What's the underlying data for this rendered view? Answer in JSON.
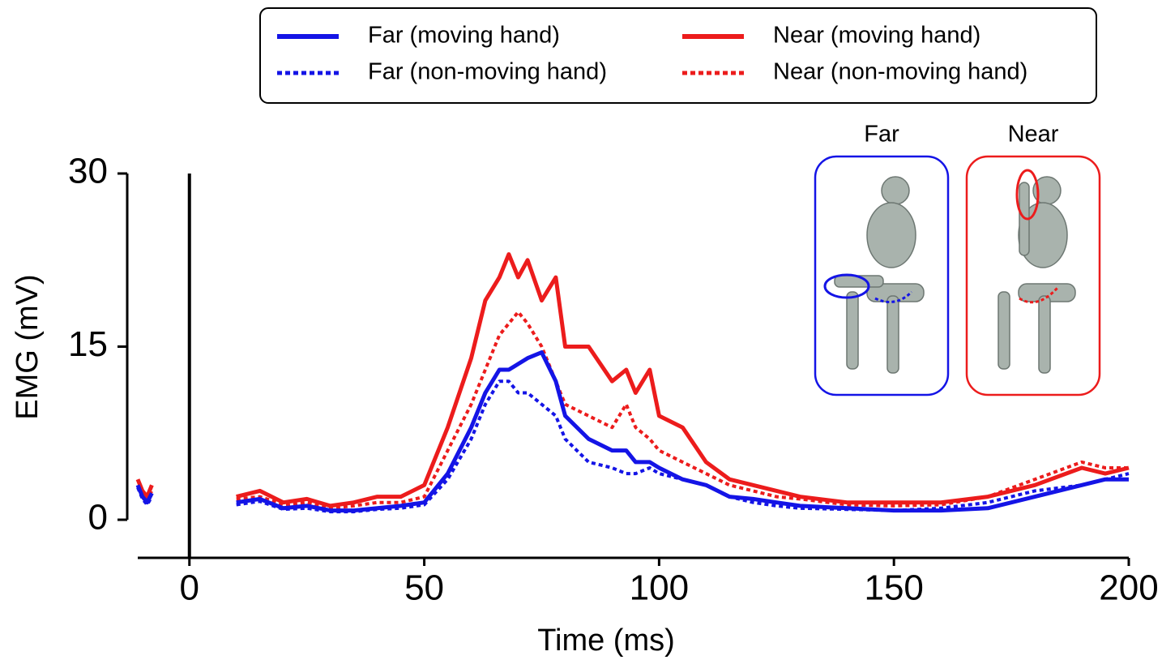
{
  "chart_data": {
    "type": "line",
    "xlabel": "Time (ms)",
    "ylabel": "EMG (mV)",
    "x": [
      -11,
      -10,
      -9,
      -8,
      0,
      10,
      15,
      20,
      25,
      30,
      35,
      40,
      45,
      50,
      55,
      60,
      63,
      66,
      68,
      70,
      72,
      75,
      78,
      80,
      85,
      90,
      93,
      95,
      98,
      100,
      105,
      110,
      115,
      120,
      125,
      130,
      140,
      150,
      160,
      170,
      180,
      190,
      195,
      200
    ],
    "series": [
      {
        "name": "Far (moving hand)",
        "color": "#1414e6",
        "dashed": false,
        "values": [
          3,
          2,
          1.5,
          2.3,
          null,
          1.5,
          1.8,
          1,
          1.2,
          0.8,
          0.8,
          1,
          1.2,
          1.5,
          4,
          8,
          11,
          13,
          13,
          13.5,
          14,
          14.5,
          12,
          9,
          7,
          6,
          6,
          5,
          5,
          4.5,
          3.5,
          3,
          2,
          1.8,
          1.5,
          1.2,
          1,
          0.8,
          0.8,
          1,
          2,
          3,
          3.5,
          3.5
        ]
      },
      {
        "name": "Near (moving hand)",
        "color": "#ec1c1c",
        "dashed": false,
        "values": [
          3.5,
          2.5,
          2,
          3,
          null,
          2,
          2.5,
          1.5,
          1.8,
          1.2,
          1.5,
          2,
          2,
          3,
          8,
          14,
          19,
          21,
          23,
          21,
          22.5,
          19,
          21,
          15,
          15,
          12,
          13,
          11,
          13,
          9,
          8,
          5,
          3.5,
          3,
          2.5,
          2,
          1.5,
          1.5,
          1.5,
          2,
          3,
          4.5,
          4,
          4.5
        ]
      },
      {
        "name": "Far (non-moving hand)",
        "color": "#1414e6",
        "dashed": true,
        "values": [
          2.8,
          1.8,
          1.3,
          2,
          null,
          1.3,
          1.6,
          0.9,
          1,
          0.7,
          0.7,
          0.9,
          1,
          1.3,
          3.5,
          7,
          10,
          12,
          12,
          11,
          11,
          10,
          9,
          7,
          5,
          4.5,
          4,
          4,
          4.5,
          4,
          3.5,
          3,
          2,
          1.5,
          1.2,
          1,
          0.9,
          0.8,
          1,
          1.5,
          2.5,
          3,
          3.5,
          4
        ]
      },
      {
        "name": "Near (non-moving hand)",
        "color": "#ec1c1c",
        "dashed": true,
        "values": [
          3,
          2.2,
          1.8,
          2.5,
          null,
          1.8,
          2,
          1.3,
          1.5,
          1,
          1.2,
          1.5,
          1.5,
          2,
          6,
          10,
          13,
          16,
          17,
          18,
          17,
          15,
          12,
          10,
          9,
          8,
          10,
          8,
          7,
          6,
          5,
          4,
          3,
          2.5,
          2,
          1.8,
          1.3,
          1.2,
          1.3,
          2,
          3.5,
          5,
          4.5,
          4.5
        ]
      }
    ],
    "xlim": [
      -11,
      200
    ],
    "xticks": [
      0,
      50,
      100,
      150,
      200
    ],
    "ylim": [
      -3.3,
      30
    ],
    "yticks": [
      0,
      15,
      30
    ],
    "vlines": [
      0
    ],
    "legend": "top",
    "insets": [
      {
        "label": "Far",
        "color": "#1414e6"
      },
      {
        "label": "Near",
        "color": "#ec1c1c"
      }
    ]
  }
}
